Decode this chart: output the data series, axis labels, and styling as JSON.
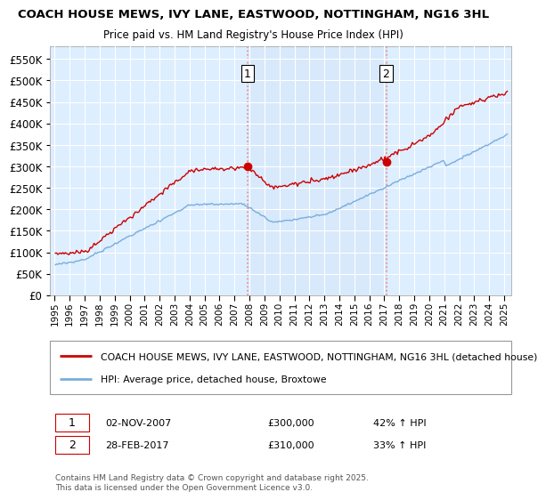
{
  "title": "COACH HOUSE MEWS, IVY LANE, EASTWOOD, NOTTINGHAM, NG16 3HL",
  "subtitle": "Price paid vs. HM Land Registry's House Price Index (HPI)",
  "legend_line1": "COACH HOUSE MEWS, IVY LANE, EASTWOOD, NOTTINGHAM, NG16 3HL (detached house)",
  "legend_line2": "HPI: Average price, detached house, Broxtowe",
  "transaction1_date": "02-NOV-2007",
  "transaction1_price": "£300,000",
  "transaction1_hpi": "42% ↑ HPI",
  "transaction2_date": "28-FEB-2017",
  "transaction2_price": "£310,000",
  "transaction2_hpi": "33% ↑ HPI",
  "footer": "Contains HM Land Registry data © Crown copyright and database right 2025.\nThis data is licensed under the Open Government Licence v3.0.",
  "hpi_color": "#7aaddc",
  "price_color": "#cc0000",
  "vline_color": "#ee8888",
  "background_color": "#ffffff",
  "plot_bg_color": "#ddeeff",
  "grid_color": "#ffffff",
  "yticks": [
    0,
    50000,
    100000,
    150000,
    200000,
    250000,
    300000,
    350000,
    400000,
    450000,
    500000,
    550000
  ],
  "ylim_max": 580000
}
